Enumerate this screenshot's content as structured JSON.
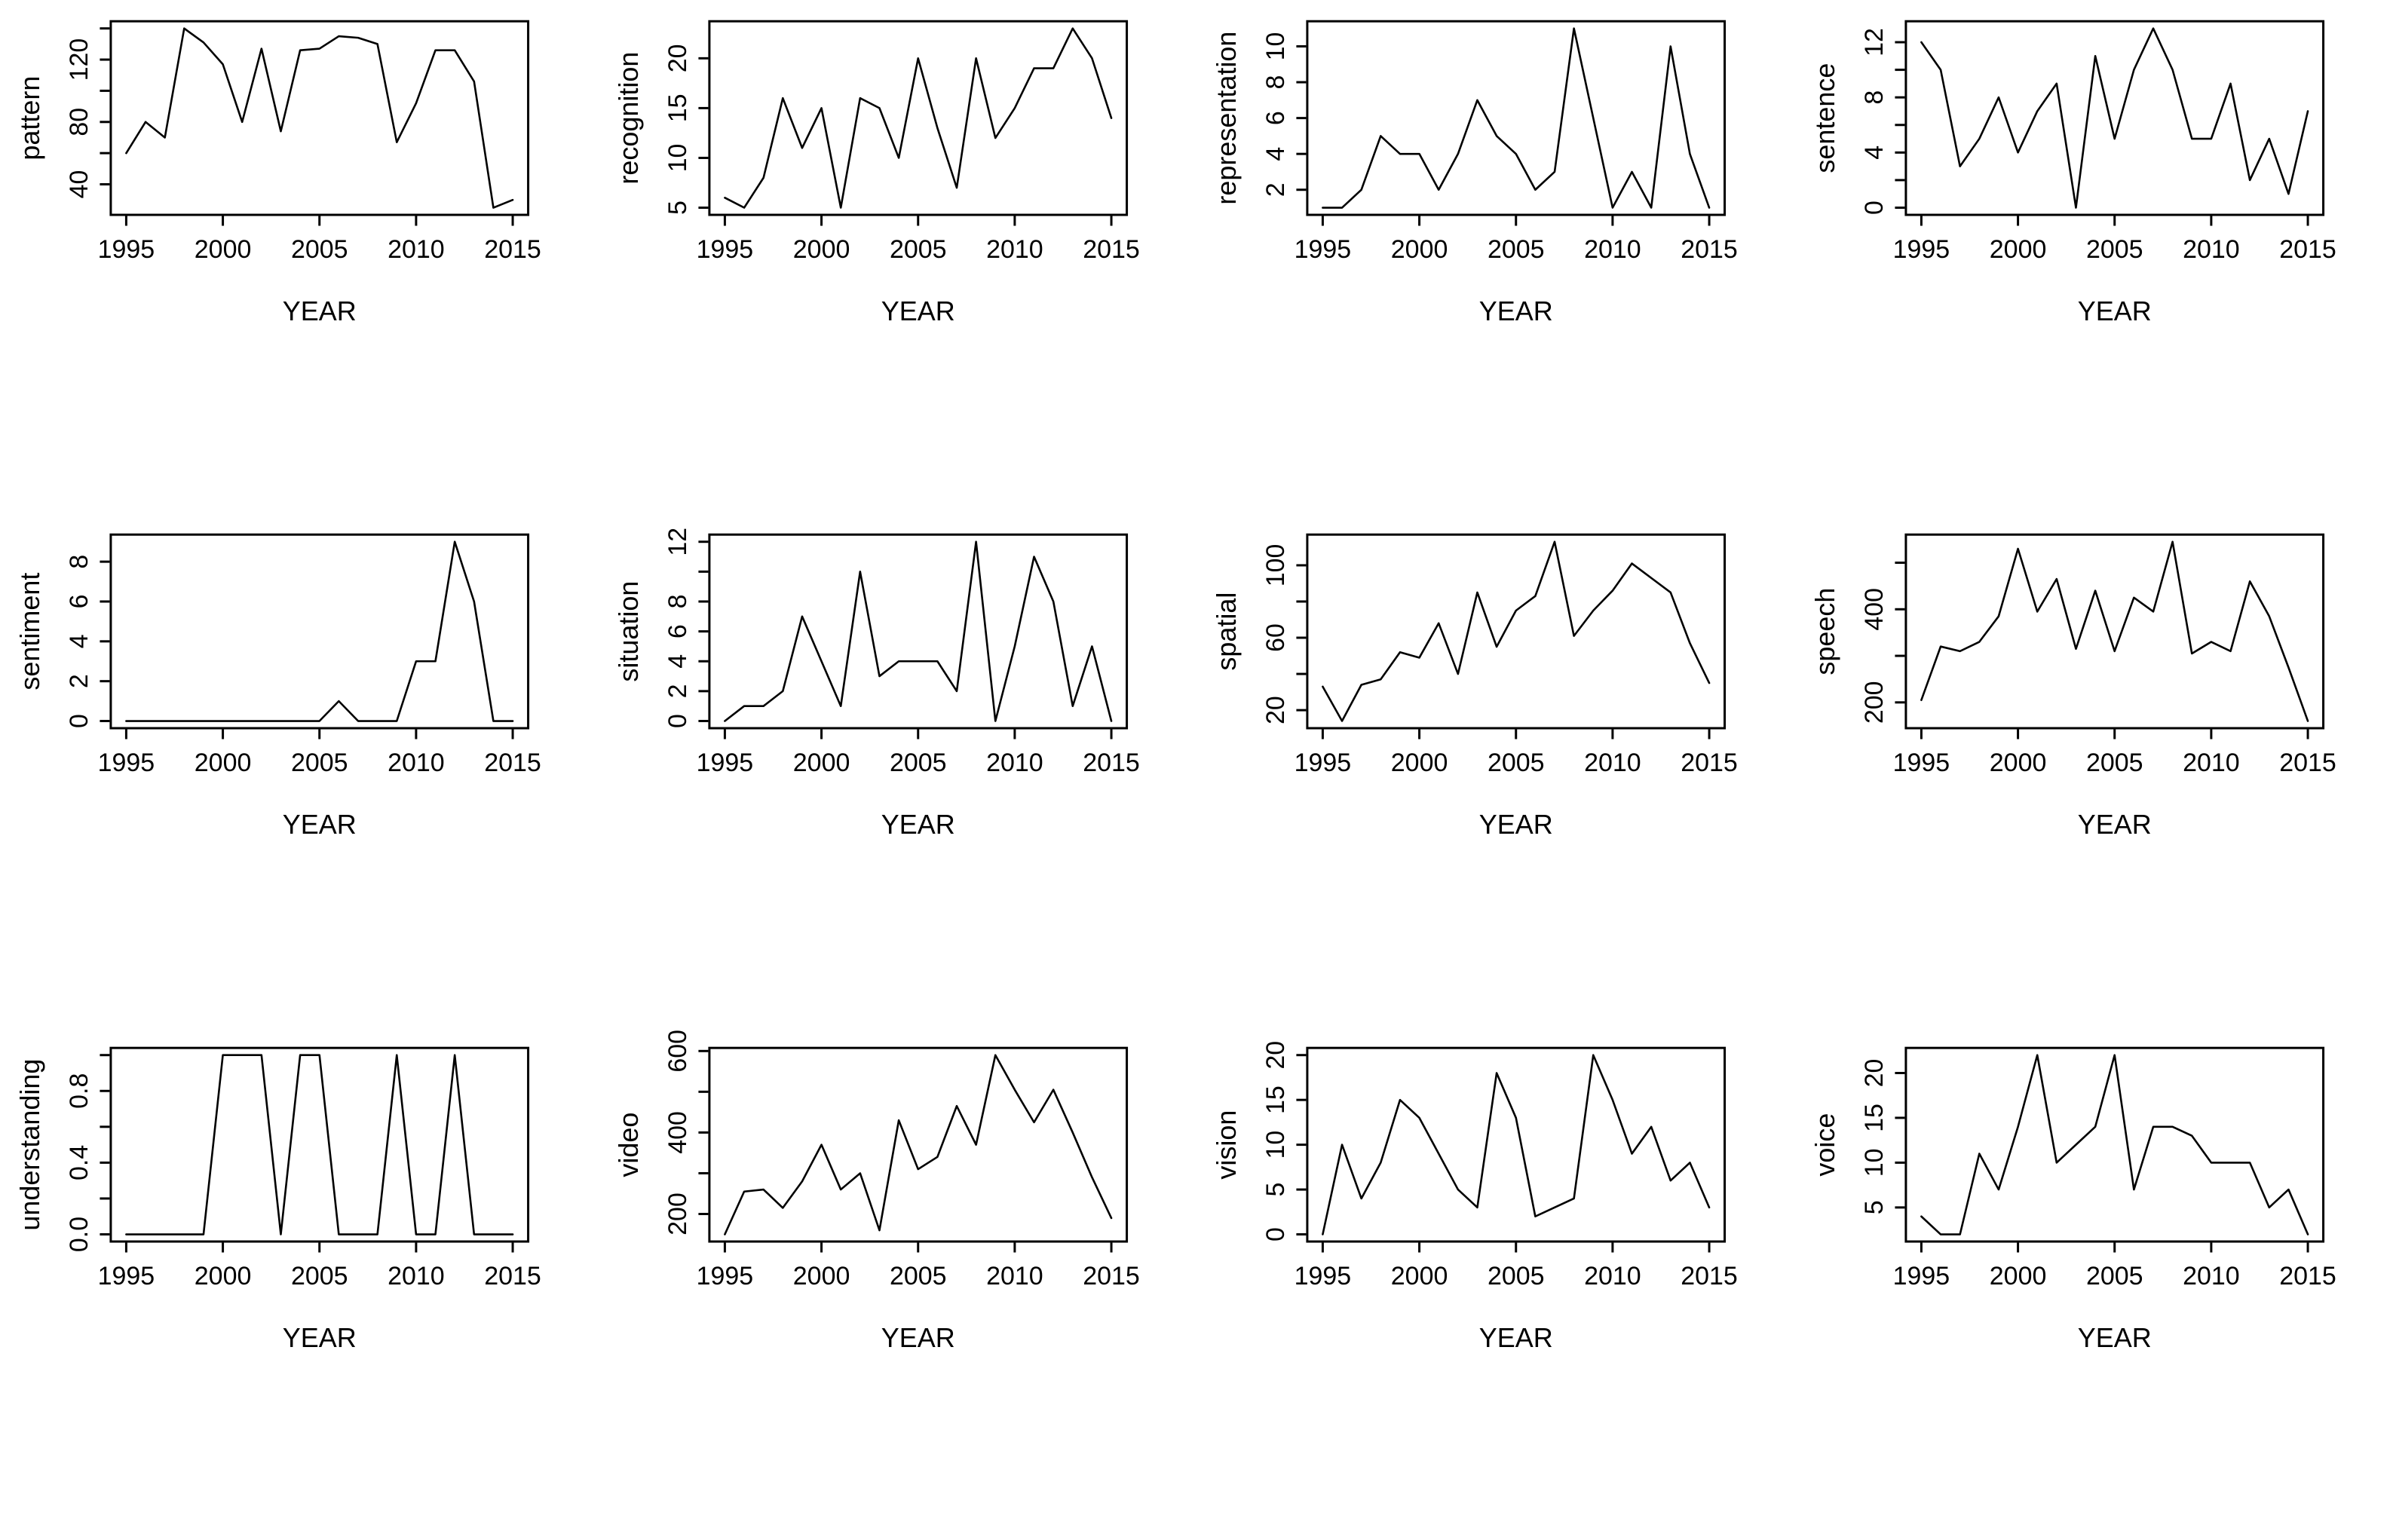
{
  "layout": {
    "xlabel": "YEAR",
    "x_ticks": [
      1995,
      2000,
      2005,
      2010,
      2015
    ],
    "x_range": [
      1995,
      2015
    ],
    "years": [
      1995,
      1996,
      1997,
      1998,
      1999,
      2000,
      2001,
      2002,
      2003,
      2004,
      2005,
      2006,
      2007,
      2008,
      2009,
      2010,
      2011,
      2012,
      2013,
      2014,
      2015
    ],
    "line_color": "#000000",
    "background_color": "#ffffff",
    "text_color": "#000000",
    "grid": "off",
    "legend": "none"
  },
  "chart_data": [
    {
      "type": "line",
      "title": "pattern",
      "ylabel": "pattern",
      "xlabel": "YEAR",
      "ylim": [
        25,
        140
      ],
      "yticks": [
        {
          "v": 40,
          "t": "40"
        },
        {
          "v": 60,
          "t": ""
        },
        {
          "v": 80,
          "t": "80"
        },
        {
          "v": 100,
          "t": ""
        },
        {
          "v": 120,
          "t": "120"
        },
        {
          "v": 140,
          "t": ""
        }
      ],
      "values": [
        60,
        80,
        70,
        140,
        131,
        117,
        80,
        127,
        74,
        126,
        127,
        135,
        134,
        130,
        67,
        92,
        126,
        126,
        106,
        25,
        30
      ]
    },
    {
      "type": "line",
      "title": "recognition",
      "ylabel": "recognition",
      "xlabel": "YEAR",
      "ylim": [
        5,
        23
      ],
      "yticks": [
        {
          "v": 5,
          "t": "5"
        },
        {
          "v": 10,
          "t": "10"
        },
        {
          "v": 15,
          "t": "15"
        },
        {
          "v": 20,
          "t": "20"
        }
      ],
      "values": [
        6,
        5,
        8,
        16,
        11,
        15,
        5,
        16,
        15,
        10,
        20,
        13,
        7,
        20,
        12,
        15,
        19,
        19,
        23,
        20,
        14
      ]
    },
    {
      "type": "line",
      "title": "representation",
      "ylabel": "representation",
      "xlabel": "YEAR",
      "ylim": [
        1,
        11
      ],
      "yticks": [
        {
          "v": 2,
          "t": "2"
        },
        {
          "v": 4,
          "t": "4"
        },
        {
          "v": 6,
          "t": "6"
        },
        {
          "v": 8,
          "t": "8"
        },
        {
          "v": 10,
          "t": "10"
        }
      ],
      "values": [
        1,
        1,
        2,
        5,
        4,
        4,
        2,
        4,
        7,
        5,
        4,
        2,
        3,
        11,
        6,
        1,
        3,
        1,
        10,
        4,
        1
      ]
    },
    {
      "type": "line",
      "title": "sentence",
      "ylabel": "sentence",
      "xlabel": "YEAR",
      "ylim": [
        0,
        13
      ],
      "yticks": [
        {
          "v": 0,
          "t": "0"
        },
        {
          "v": 2,
          "t": ""
        },
        {
          "v": 4,
          "t": "4"
        },
        {
          "v": 6,
          "t": ""
        },
        {
          "v": 8,
          "t": "8"
        },
        {
          "v": 10,
          "t": ""
        },
        {
          "v": 12,
          "t": "12"
        }
      ],
      "values": [
        12,
        10,
        3,
        5,
        8,
        4,
        7,
        9,
        0,
        11,
        5,
        10,
        13,
        10,
        5,
        5,
        9,
        2,
        5,
        1,
        7
      ]
    },
    {
      "type": "line",
      "title": "sentiment",
      "ylabel": "sentiment",
      "xlabel": "YEAR",
      "ylim": [
        0,
        9
      ],
      "yticks": [
        {
          "v": 0,
          "t": "0"
        },
        {
          "v": 2,
          "t": "2"
        },
        {
          "v": 4,
          "t": "4"
        },
        {
          "v": 6,
          "t": "6"
        },
        {
          "v": 8,
          "t": "8"
        }
      ],
      "values": [
        0,
        0,
        0,
        0,
        0,
        0,
        0,
        0,
        0,
        0,
        0,
        1,
        0,
        0,
        0,
        3,
        3,
        9,
        6,
        0,
        0
      ]
    },
    {
      "type": "line",
      "title": "situation",
      "ylabel": "situation",
      "xlabel": "YEAR",
      "ylim": [
        0,
        12
      ],
      "yticks": [
        {
          "v": 0,
          "t": "0"
        },
        {
          "v": 2,
          "t": "2"
        },
        {
          "v": 4,
          "t": "4"
        },
        {
          "v": 6,
          "t": "6"
        },
        {
          "v": 8,
          "t": "8"
        },
        {
          "v": 10,
          "t": ""
        },
        {
          "v": 12,
          "t": "12"
        }
      ],
      "values": [
        0,
        1,
        1,
        2,
        7,
        4,
        1,
        10,
        3,
        4,
        4,
        4,
        2,
        12,
        0,
        5,
        11,
        8,
        1,
        5,
        0
      ]
    },
    {
      "type": "line",
      "title": "spatial",
      "ylabel": "spatial",
      "xlabel": "YEAR",
      "ylim": [
        14,
        113
      ],
      "yticks": [
        {
          "v": 20,
          "t": "20"
        },
        {
          "v": 40,
          "t": ""
        },
        {
          "v": 60,
          "t": "60"
        },
        {
          "v": 80,
          "t": ""
        },
        {
          "v": 100,
          "t": "100"
        }
      ],
      "values": [
        33,
        14,
        34,
        37,
        52,
        49,
        68,
        40,
        85,
        55,
        75,
        83,
        113,
        61,
        75,
        86,
        101,
        93,
        85,
        57,
        35
      ]
    },
    {
      "type": "line",
      "title": "speech",
      "ylabel": "speech",
      "xlabel": "YEAR",
      "ylim": [
        160,
        545
      ],
      "yticks": [
        {
          "v": 200,
          "t": "200"
        },
        {
          "v": 300,
          "t": ""
        },
        {
          "v": 400,
          "t": "400"
        },
        {
          "v": 500,
          "t": ""
        }
      ],
      "values": [
        205,
        320,
        310,
        330,
        385,
        530,
        395,
        465,
        315,
        440,
        310,
        425,
        395,
        545,
        305,
        330,
        310,
        460,
        385,
        275,
        160
      ]
    },
    {
      "type": "line",
      "title": "understanding",
      "ylabel": "understanding",
      "xlabel": "YEAR",
      "ylim": [
        0,
        1
      ],
      "yticks": [
        {
          "v": 0,
          "t": "0.0"
        },
        {
          "v": 0.2,
          "t": ""
        },
        {
          "v": 0.4,
          "t": "0.4"
        },
        {
          "v": 0.6,
          "t": ""
        },
        {
          "v": 0.8,
          "t": "0.8"
        },
        {
          "v": 1.0,
          "t": ""
        }
      ],
      "values": [
        0,
        0,
        0,
        0,
        0,
        1,
        1,
        1,
        0,
        1,
        1,
        0,
        0,
        0,
        1,
        0,
        0,
        1,
        0,
        0,
        0
      ]
    },
    {
      "type": "line",
      "title": "video",
      "ylabel": "video",
      "xlabel": "YEAR",
      "ylim": [
        150,
        590
      ],
      "yticks": [
        {
          "v": 200,
          "t": "200"
        },
        {
          "v": 300,
          "t": ""
        },
        {
          "v": 400,
          "t": "400"
        },
        {
          "v": 500,
          "t": ""
        },
        {
          "v": 600,
          "t": "600"
        }
      ],
      "values": [
        150,
        255,
        260,
        215,
        280,
        370,
        260,
        300,
        160,
        430,
        310,
        340,
        465,
        370,
        590,
        505,
        425,
        505,
        400,
        290,
        190
      ]
    },
    {
      "type": "line",
      "title": "vision",
      "ylabel": "vision",
      "xlabel": "YEAR",
      "ylim": [
        0,
        20
      ],
      "yticks": [
        {
          "v": 0,
          "t": "0"
        },
        {
          "v": 5,
          "t": "5"
        },
        {
          "v": 10,
          "t": "10"
        },
        {
          "v": 15,
          "t": "15"
        },
        {
          "v": 20,
          "t": "20"
        }
      ],
      "values": [
        0,
        10,
        4,
        8,
        15,
        13,
        9,
        5,
        3,
        18,
        13,
        2,
        3,
        4,
        20,
        15,
        9,
        12,
        6,
        8,
        3
      ]
    },
    {
      "type": "line",
      "title": "voice",
      "ylabel": "voice",
      "xlabel": "YEAR",
      "ylim": [
        2,
        22
      ],
      "yticks": [
        {
          "v": 5,
          "t": "5"
        },
        {
          "v": 10,
          "t": "10"
        },
        {
          "v": 15,
          "t": "15"
        },
        {
          "v": 20,
          "t": "20"
        }
      ],
      "values": [
        4,
        2,
        2,
        11,
        7,
        14,
        22,
        10,
        12,
        14,
        22,
        7,
        14,
        14,
        13,
        10,
        10,
        10,
        5,
        7,
        2
      ]
    }
  ]
}
